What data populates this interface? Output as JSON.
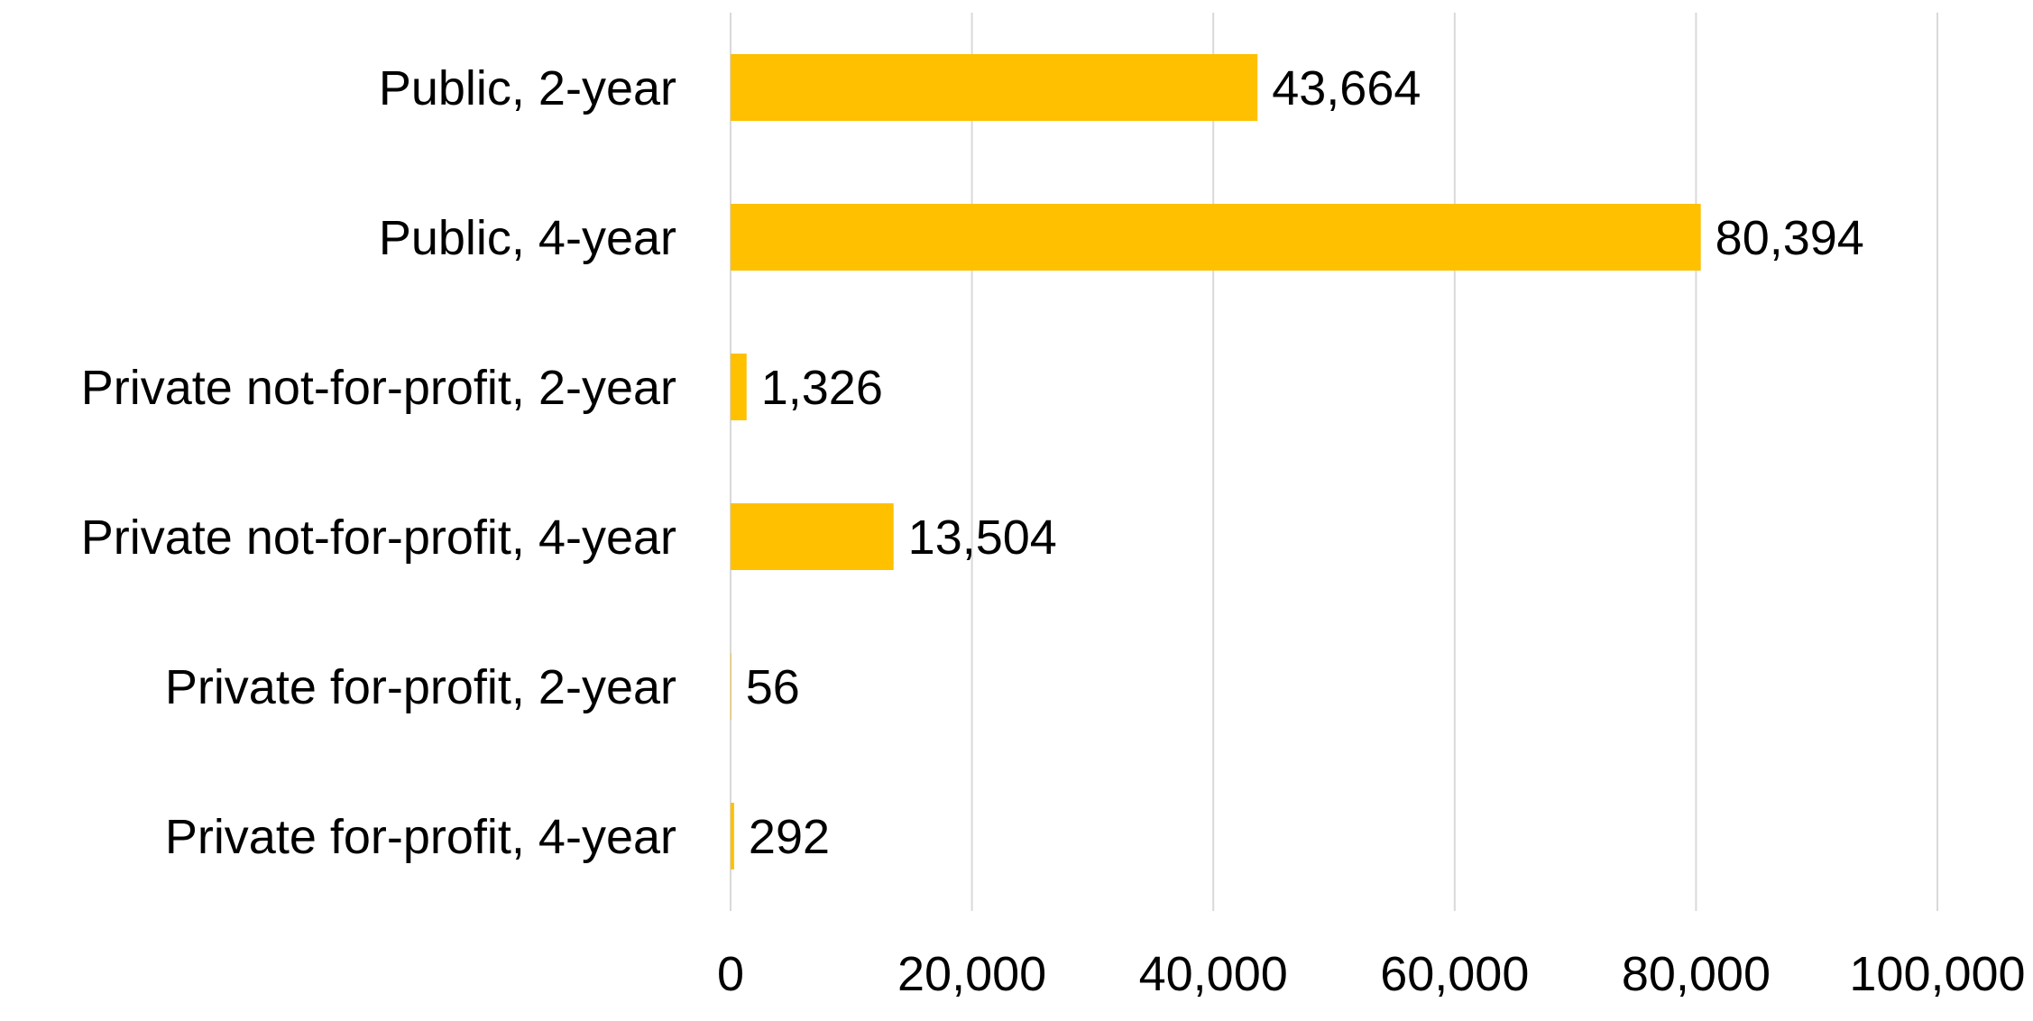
{
  "chart_data": {
    "type": "bar",
    "orientation": "horizontal",
    "categories": [
      "Public, 2-year",
      "Public, 4-year",
      "Private not-for-profit, 2-year",
      "Private not-for-profit, 4-year",
      "Private for-profit, 2-year",
      "Private for-profit, 4-year"
    ],
    "values": [
      43664,
      80394,
      1326,
      13504,
      56,
      292
    ],
    "value_labels": [
      "43,664",
      "80,394",
      "1,326",
      "13,504",
      "56",
      "292"
    ],
    "xlim": [
      0,
      100000
    ],
    "xticks": [
      0,
      20000,
      40000,
      60000,
      80000,
      100000
    ],
    "xtick_labels": [
      "0",
      "20,000",
      "40,000",
      "60,000",
      "80,000",
      "100,000"
    ],
    "title": "",
    "xlabel": "",
    "ylabel": "",
    "grid": "vertical",
    "legend": "none",
    "colors": {
      "bar": "#FFC000",
      "grid": "#D9D9D9",
      "text": "#000000"
    }
  }
}
